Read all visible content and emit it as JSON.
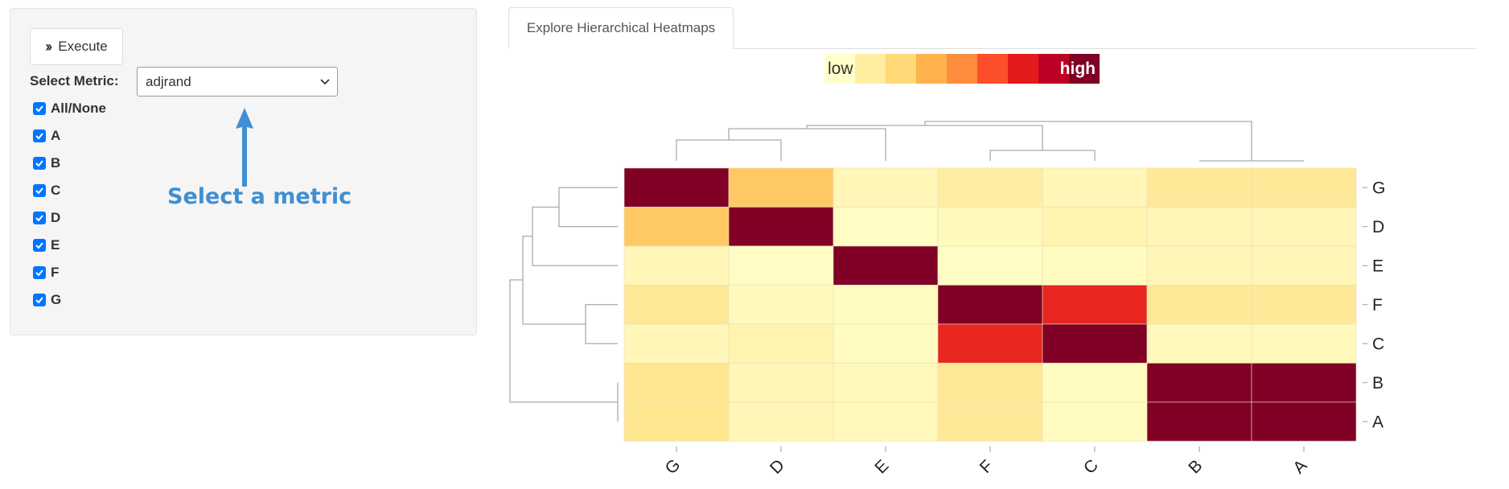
{
  "sidebar": {
    "execute_label": "Execute",
    "execute_icon": "double-chevron-right-icon",
    "metric_label": "Select Metric:",
    "metric_value": "adjrand",
    "checkboxes": [
      {
        "label": "All/None",
        "checked": true
      },
      {
        "label": "A",
        "checked": true
      },
      {
        "label": "B",
        "checked": true
      },
      {
        "label": "C",
        "checked": true
      },
      {
        "label": "D",
        "checked": true
      },
      {
        "label": "E",
        "checked": true
      },
      {
        "label": "F",
        "checked": true
      },
      {
        "label": "G",
        "checked": true
      }
    ],
    "annotation": "Select a metric",
    "annotation_color": "#3f8fd2"
  },
  "main": {
    "tab_label": "Explore Hierarchical Heatmaps"
  },
  "chart_data": {
    "type": "heatmap",
    "legend": {
      "low_label": "low",
      "high_label": "high",
      "colors": [
        "#ffffcc",
        "#ffeda0",
        "#fed976",
        "#feb24c",
        "#fd8d3c",
        "#fc4e2a",
        "#e31a1c",
        "#bd0026",
        "#800026"
      ]
    },
    "col_labels": [
      "G",
      "D",
      "E",
      "F",
      "C",
      "B",
      "A"
    ],
    "row_labels": [
      "G",
      "D",
      "E",
      "F",
      "C",
      "B",
      "A"
    ],
    "values": [
      [
        1.0,
        0.3,
        0.06,
        0.12,
        0.06,
        0.15,
        0.15
      ],
      [
        0.3,
        1.0,
        0.02,
        0.04,
        0.08,
        0.06,
        0.06
      ],
      [
        0.06,
        0.02,
        1.0,
        0.02,
        0.03,
        0.06,
        0.06
      ],
      [
        0.15,
        0.04,
        0.03,
        1.0,
        0.72,
        0.15,
        0.15
      ],
      [
        0.06,
        0.08,
        0.03,
        0.72,
        1.0,
        0.05,
        0.05
      ],
      [
        0.17,
        0.06,
        0.05,
        0.15,
        0.03,
        1.0,
        1.0
      ],
      [
        0.17,
        0.06,
        0.05,
        0.15,
        0.03,
        1.0,
        1.0
      ]
    ]
  }
}
